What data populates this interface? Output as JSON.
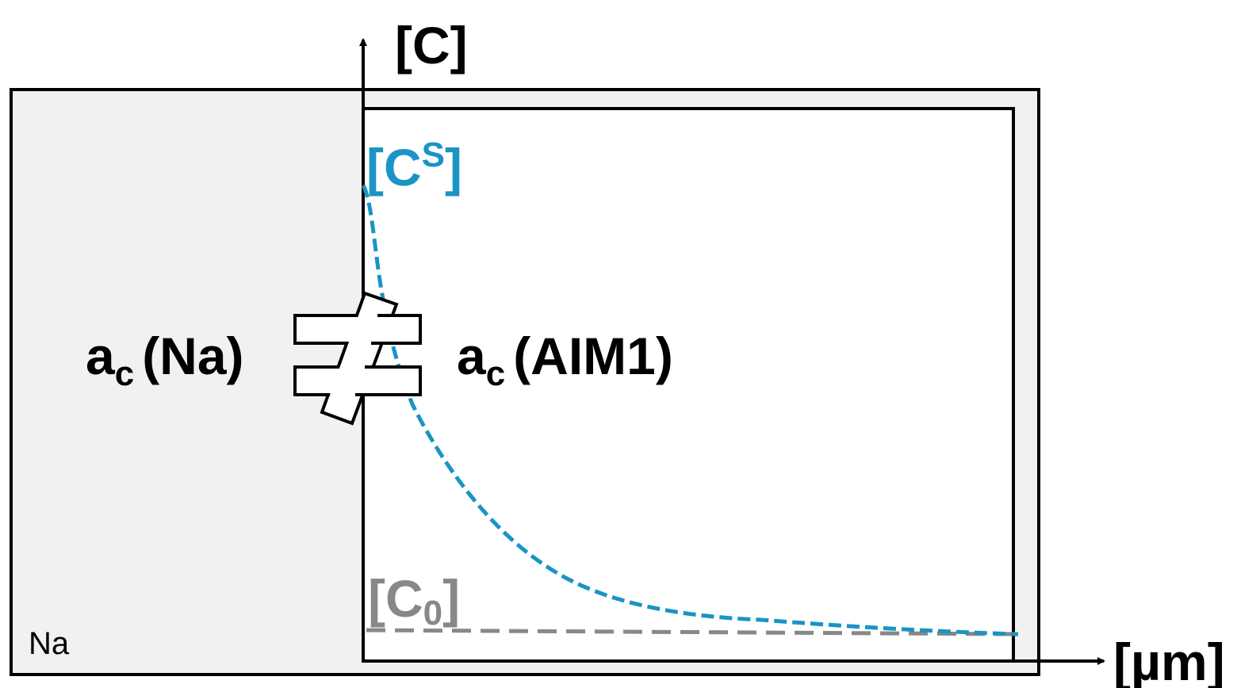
{
  "axes": {
    "y_label": "[C]",
    "x_label": "[µm]"
  },
  "regions": {
    "outer_label": "Na"
  },
  "curves": {
    "surface_label_base": "[C",
    "surface_label_sup": "S",
    "surface_label_close": "]",
    "bulk_label_base": "[C",
    "bulk_label_sub": "0",
    "bulk_label_close": "]"
  },
  "relation": {
    "left_base": "a",
    "left_sub": "c",
    "left_arg": "(Na)",
    "right_base": "a",
    "right_sub": "c",
    "right_arg": "(AIM1)",
    "symbol_name": "not-equal"
  },
  "colors": {
    "surface": "#1a94c4",
    "bulk": "#888888",
    "frame": "#000000",
    "na_fill": "#f1f1f1"
  }
}
